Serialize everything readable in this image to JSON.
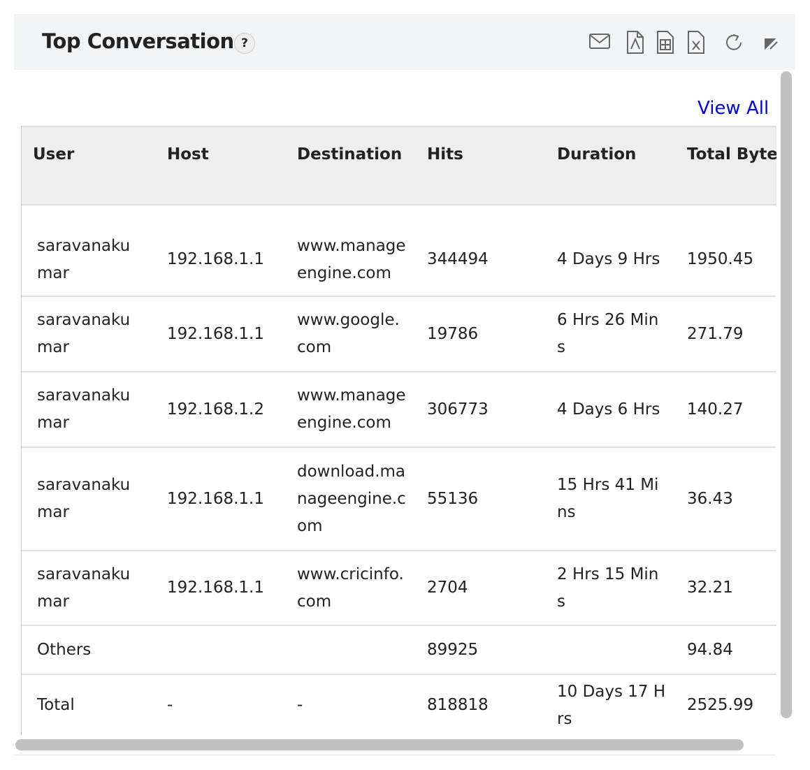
{
  "header": {
    "title": "Top Conversations",
    "help": "?"
  },
  "view_all": "View All",
  "table": {
    "columns": [
      "User",
      "Host",
      "Destination",
      "Hits",
      "Duration",
      "Total Bytes(MB)"
    ],
    "rows": [
      [
        "saravanakumar",
        "192.168.1.1",
        "www.manageengine.com",
        "344494",
        "4 Days 9 Hrs",
        "1950.45"
      ],
      [
        "saravanakumar",
        "192.168.1.1",
        "www.google.com",
        "19786",
        "6 Hrs 26 Mins",
        "271.79"
      ],
      [
        "saravanakumar",
        "192.168.1.2",
        "www.manageengine.com",
        "306773",
        "4 Days 6 Hrs",
        "140.27"
      ],
      [
        "saravanakumar",
        "192.168.1.1",
        "download.manageengine.com",
        "55136",
        "15 Hrs 41 Mins",
        "36.43"
      ],
      [
        "saravanakumar",
        "192.168.1.1",
        "www.cricinfo.com",
        "2704",
        "2 Hrs 15 Mins",
        "32.21"
      ],
      [
        "Others",
        "",
        "",
        "89925",
        "",
        "94.84"
      ],
      [
        "Total",
        "-",
        "-",
        "818818",
        "10 Days 17 Hrs",
        "2525.99"
      ]
    ]
  }
}
